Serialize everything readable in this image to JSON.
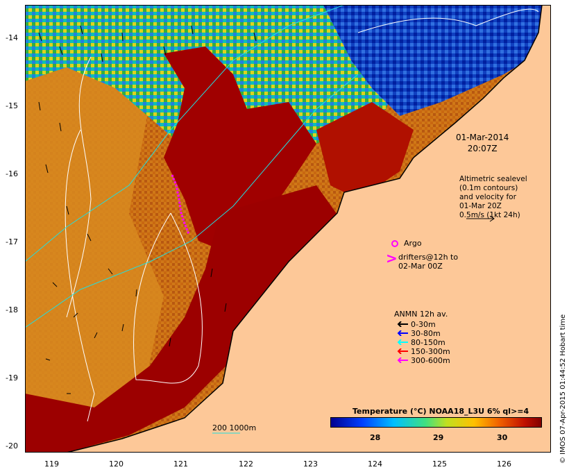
{
  "map": {
    "lon_ticks": [
      "119",
      "120",
      "121",
      "122",
      "123",
      "124",
      "125",
      "126"
    ],
    "lat_ticks": [
      "-14",
      "-15",
      "-16",
      "-17",
      "-18",
      "-19",
      "-20"
    ],
    "date_line1": "01-Mar-2014",
    "date_line2": "20:07Z",
    "altimetry_lines": [
      "Altimetric sealevel",
      "(0.1m contours)",
      "and velocity for",
      "01-Mar 20Z",
      "0.5m/s (1kt 24h)"
    ],
    "argo_label": "Argo",
    "drifters_lines": [
      "drifters@12h to",
      "02-Mar 00Z"
    ],
    "anmn_title": "ANMN 12h av.",
    "anmn_legend": [
      {
        "label": "0-30m",
        "color": "#000000"
      },
      {
        "label": "30-80m",
        "color": "#0000ff"
      },
      {
        "label": "80-150m",
        "color": "#00ffff"
      },
      {
        "label": "150-300m",
        "color": "#ff0000"
      },
      {
        "label": "300-600m",
        "color": "#ff00ff"
      }
    ],
    "bathy_label": "200  1000m",
    "colorbar_title": "Temperature (°C) NOAA18_L3U 6% ql>=4",
    "colorbar_ticks": [
      "28",
      "29",
      "30"
    ],
    "copyright": "© IMOS 07-Apr-2015 01:44:52 Hobart time",
    "colors": {
      "land": "#fdc898",
      "warm": "#a00000",
      "mid": "#c86010",
      "cool": "#0030d0"
    }
  }
}
